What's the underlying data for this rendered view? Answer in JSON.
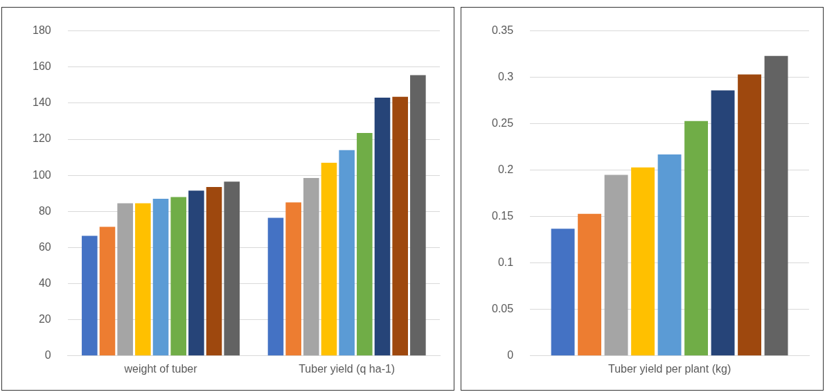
{
  "chart_data": [
    {
      "type": "bar",
      "categories": [
        "weight of tuber",
        "Tuber yield (q ha-1)"
      ],
      "ylim": [
        0,
        180
      ],
      "yticks": [
        0,
        20,
        40,
        60,
        80,
        100,
        120,
        140,
        160,
        180
      ],
      "grid": "y",
      "legend": false,
      "series": [
        {
          "color": "#4472c4",
          "values": [
            66.5,
            76.5
          ]
        },
        {
          "color": "#ed7d31",
          "values": [
            71.5,
            85
          ]
        },
        {
          "color": "#a5a5a5",
          "values": [
            84.5,
            98.5
          ]
        },
        {
          "color": "#ffc000",
          "values": [
            84.5,
            107
          ]
        },
        {
          "color": "#5b9bd5",
          "values": [
            87,
            114
          ]
        },
        {
          "color": "#70ad47",
          "values": [
            88,
            123.5
          ]
        },
        {
          "color": "#264478",
          "values": [
            91.5,
            143
          ]
        },
        {
          "color": "#9e480e",
          "values": [
            93.5,
            143.5
          ]
        },
        {
          "color": "#636363",
          "values": [
            96.5,
            155.5
          ]
        }
      ]
    },
    {
      "type": "bar",
      "categories": [
        "Tuber yield per plant (kg)"
      ],
      "ylim": [
        0,
        0.35
      ],
      "yticks": [
        0,
        0.05,
        0.1,
        0.15,
        0.2,
        0.25,
        0.3,
        0.35
      ],
      "grid": "y",
      "legend": false,
      "series": [
        {
          "color": "#4472c4",
          "values": [
            0.137
          ]
        },
        {
          "color": "#ed7d31",
          "values": [
            0.153
          ]
        },
        {
          "color": "#a5a5a5",
          "values": [
            0.195
          ]
        },
        {
          "color": "#ffc000",
          "values": [
            0.203
          ]
        },
        {
          "color": "#5b9bd5",
          "values": [
            0.217
          ]
        },
        {
          "color": "#70ad47",
          "values": [
            0.253
          ]
        },
        {
          "color": "#264478",
          "values": [
            0.286
          ]
        },
        {
          "color": "#9e480e",
          "values": [
            0.303
          ]
        },
        {
          "color": "#636363",
          "values": [
            0.323
          ]
        }
      ]
    }
  ]
}
